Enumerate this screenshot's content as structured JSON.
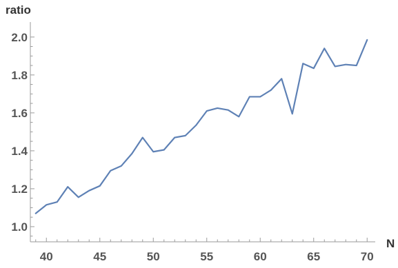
{
  "chart_data": {
    "type": "line",
    "xlabel": "N",
    "ylabel": "ratio",
    "xlim": [
      38.5,
      70.5
    ],
    "ylim": [
      0.92,
      2.05
    ],
    "x_ticks": [
      40,
      45,
      50,
      55,
      60,
      65,
      70
    ],
    "x_minor_ticks": [
      39,
      41,
      42,
      43,
      44,
      46,
      47,
      48,
      49,
      51,
      52,
      53,
      54,
      56,
      57,
      58,
      59,
      61,
      62,
      63,
      64,
      66,
      67,
      68,
      69
    ],
    "y_ticks": [
      1.0,
      1.2,
      1.4,
      1.6,
      1.8,
      2.0
    ],
    "y_minor_ticks": [
      0.95,
      1.05,
      1.1,
      1.15,
      1.25,
      1.3,
      1.35,
      1.45,
      1.5,
      1.55,
      1.65,
      1.7,
      1.75,
      1.85,
      1.9,
      1.95
    ],
    "y_tick_labels": [
      "1.0",
      "1.2",
      "1.4",
      "1.6",
      "1.8",
      "2.0"
    ],
    "x_tick_labels": [
      "40",
      "45",
      "50",
      "55",
      "60",
      "65",
      "70"
    ],
    "grid": false,
    "series": [
      {
        "color": "#5e81b5",
        "x": [
          39,
          40,
          41,
          42,
          43,
          44,
          45,
          46,
          47,
          48,
          49,
          50,
          51,
          52,
          53,
          54,
          55,
          56,
          57,
          58,
          59,
          60,
          61,
          62,
          63,
          64,
          65,
          66,
          67,
          68,
          69,
          70
        ],
        "y": [
          1.07,
          1.115,
          1.13,
          1.21,
          1.155,
          1.19,
          1.215,
          1.295,
          1.32,
          1.385,
          1.47,
          1.395,
          1.405,
          1.47,
          1.48,
          1.535,
          1.61,
          1.625,
          1.615,
          1.58,
          1.685,
          1.685,
          1.72,
          1.78,
          1.595,
          1.86,
          1.835,
          1.94,
          1.845,
          1.855,
          1.85,
          1.985
        ]
      }
    ]
  }
}
